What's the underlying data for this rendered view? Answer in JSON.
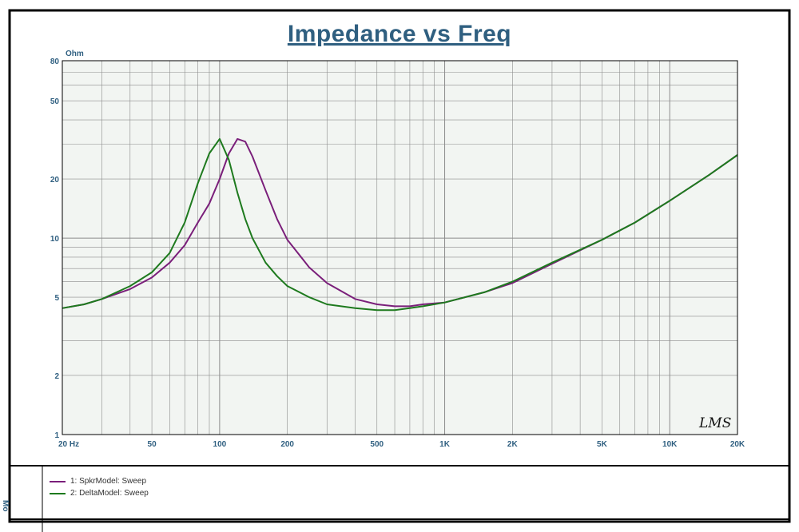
{
  "colors": {
    "title": "#2f5f80",
    "axis_text": "#2f5f80",
    "grid": "#8c8c8c",
    "frame": "#000000",
    "plot_bg": "#f2f5f2",
    "spkr": "#7a1f7a",
    "delta": "#1e7a1e"
  },
  "legend": {
    "items": [
      {
        "label": "1: SpkrModel: Sweep"
      },
      {
        "label": "2: DeltaModel: Sweep"
      }
    ]
  },
  "side_label": "Mo",
  "watermark": "LMS",
  "chart_data": {
    "type": "line",
    "title": "Impedance vs Freq",
    "ylabel": "Ohm",
    "xlabel": "",
    "x_scale": "log",
    "y_scale": "log",
    "xlim": [
      20,
      20000
    ],
    "ylim": [
      1,
      80
    ],
    "x_ticks": [
      {
        "v": 20,
        "label": "20  Hz"
      },
      {
        "v": 50,
        "label": "50"
      },
      {
        "v": 100,
        "label": "100"
      },
      {
        "v": 200,
        "label": "200"
      },
      {
        "v": 500,
        "label": "500"
      },
      {
        "v": 1000,
        "label": "1K"
      },
      {
        "v": 2000,
        "label": "2K"
      },
      {
        "v": 5000,
        "label": "5K"
      },
      {
        "v": 10000,
        "label": "10K"
      },
      {
        "v": 20000,
        "label": "20K"
      }
    ],
    "y_ticks": [
      {
        "v": 1,
        "label": "1"
      },
      {
        "v": 2,
        "label": "2"
      },
      {
        "v": 5,
        "label": "5"
      },
      {
        "v": 10,
        "label": "10"
      },
      {
        "v": 20,
        "label": "20"
      },
      {
        "v": 50,
        "label": "50"
      },
      {
        "v": 80,
        "label": "80"
      }
    ],
    "grid": true,
    "legend_position": "bottom-left",
    "series": [
      {
        "name": "1: SpkrModel: Sweep",
        "x": [
          20,
          25,
          30,
          40,
          50,
          60,
          70,
          80,
          90,
          100,
          110,
          120,
          130,
          140,
          160,
          180,
          200,
          250,
          300,
          400,
          500,
          600,
          700,
          800,
          1000,
          1500,
          2000,
          3000,
          5000,
          7000,
          10000,
          15000,
          20000
        ],
        "values": [
          4.4,
          4.6,
          4.9,
          5.5,
          6.3,
          7.5,
          9.2,
          12,
          15,
          20,
          27,
          32,
          31,
          26,
          17.5,
          12.5,
          9.8,
          7.1,
          5.9,
          4.9,
          4.6,
          4.5,
          4.5,
          4.6,
          4.7,
          5.3,
          5.9,
          7.4,
          9.8,
          12,
          15.5,
          21,
          26.5
        ]
      },
      {
        "name": "2: DeltaModel: Sweep",
        "x": [
          20,
          25,
          30,
          40,
          50,
          60,
          70,
          80,
          90,
          100,
          110,
          120,
          130,
          140,
          160,
          180,
          200,
          250,
          300,
          400,
          500,
          600,
          700,
          800,
          1000,
          1500,
          2000,
          3000,
          5000,
          7000,
          10000,
          15000,
          20000
        ],
        "values": [
          4.4,
          4.6,
          4.9,
          5.7,
          6.7,
          8.4,
          12,
          19,
          27,
          32,
          25,
          17,
          12.5,
          10,
          7.5,
          6.4,
          5.7,
          5,
          4.6,
          4.4,
          4.3,
          4.3,
          4.4,
          4.5,
          4.7,
          5.3,
          6,
          7.5,
          9.8,
          12,
          15.5,
          21,
          26.5
        ]
      }
    ]
  }
}
